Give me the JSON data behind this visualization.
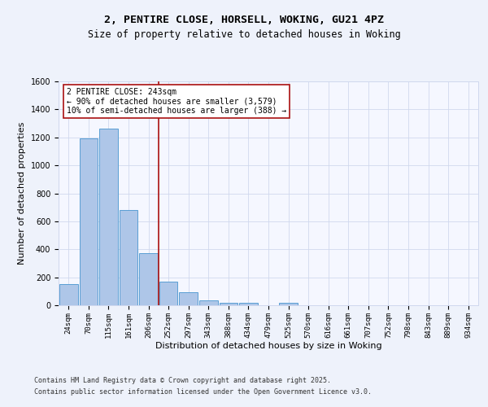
{
  "title_line1": "2, PENTIRE CLOSE, HORSELL, WOKING, GU21 4PZ",
  "title_line2": "Size of property relative to detached houses in Woking",
  "xlabel": "Distribution of detached houses by size in Woking",
  "ylabel": "Number of detached properties",
  "categories": [
    "24sqm",
    "70sqm",
    "115sqm",
    "161sqm",
    "206sqm",
    "252sqm",
    "297sqm",
    "343sqm",
    "388sqm",
    "434sqm",
    "479sqm",
    "525sqm",
    "570sqm",
    "616sqm",
    "661sqm",
    "707sqm",
    "752sqm",
    "798sqm",
    "843sqm",
    "889sqm",
    "934sqm"
  ],
  "values": [
    150,
    1190,
    1260,
    680,
    375,
    170,
    95,
    35,
    20,
    20,
    0,
    20,
    0,
    0,
    0,
    0,
    0,
    0,
    0,
    0,
    0
  ],
  "bar_color": "#aec6e8",
  "bar_edge_color": "#5a9fd4",
  "vline_x_idx": 5,
  "vline_color": "#aa1111",
  "annotation_line1": "2 PENTIRE CLOSE: 243sqm",
  "annotation_line2": "← 90% of detached houses are smaller (3,579)",
  "annotation_line3": "10% of semi-detached houses are larger (388) →",
  "annotation_box_color": "#ffffff",
  "annotation_box_edge": "#aa1111",
  "ylim": [
    0,
    1600
  ],
  "yticks": [
    0,
    200,
    400,
    600,
    800,
    1000,
    1200,
    1400,
    1600
  ],
  "background_color": "#eef2fb",
  "plot_bg_color": "#f5f7ff",
  "grid_color": "#d0d8ee",
  "footer_line1": "Contains HM Land Registry data © Crown copyright and database right 2025.",
  "footer_line2": "Contains public sector information licensed under the Open Government Licence v3.0.",
  "title_fontsize": 9.5,
  "subtitle_fontsize": 8.5,
  "tick_fontsize": 6.5,
  "label_fontsize": 8,
  "footer_fontsize": 6,
  "annotation_fontsize": 7
}
